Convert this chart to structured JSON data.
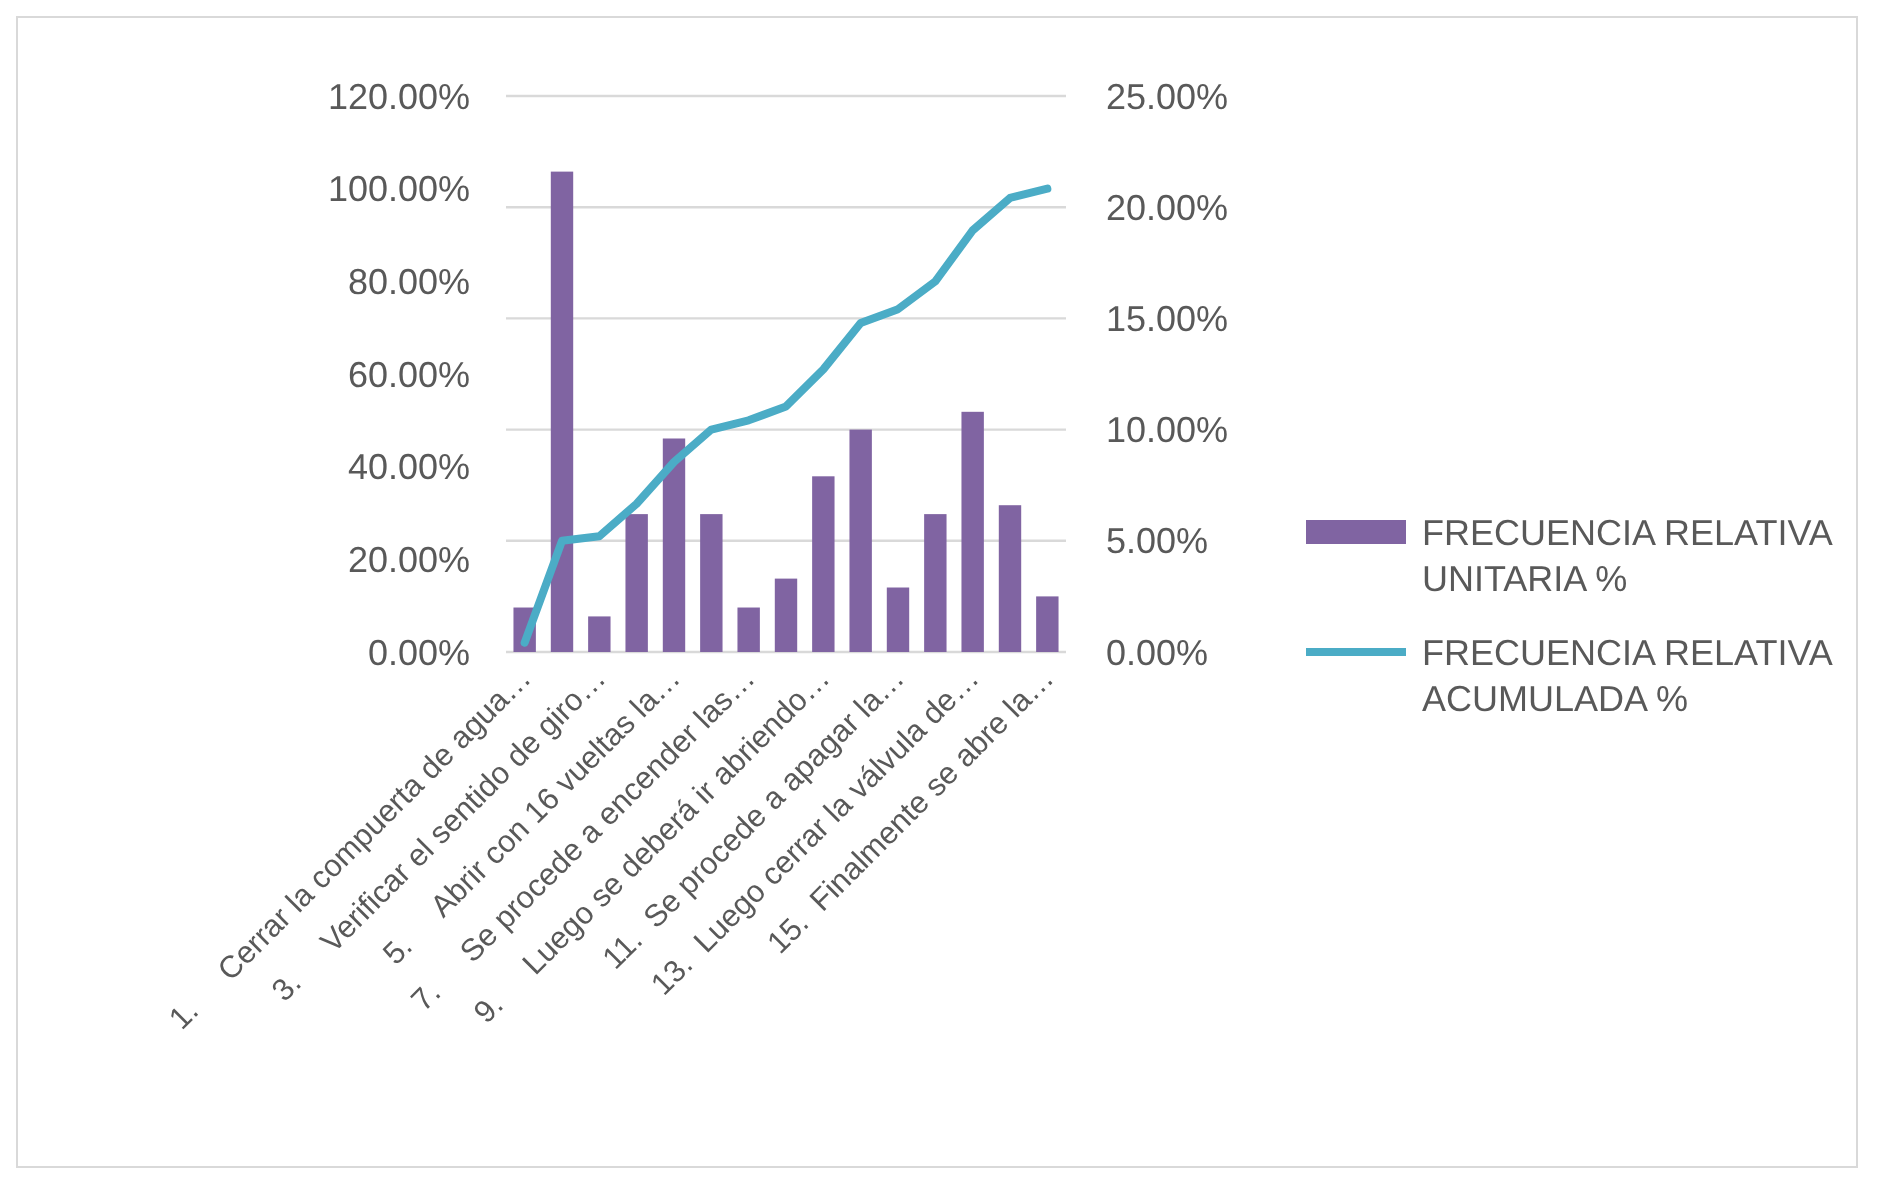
{
  "chart_data": {
    "type": "bar",
    "categories": [
      "1.     Cerrar la compuerta de agua…",
      null,
      "3.     Verificar el sentido de giro…",
      null,
      "5.     Abrir con 16 vueltas la…",
      null,
      "7.     Se procede a encender las…",
      null,
      "9.     Luego se deberá ir abriendo…",
      null,
      "11.  Se procede a apagar la…",
      null,
      "13.  Luego cerrar la válvula de…",
      null,
      "15.  Finalmente se abre la…"
    ],
    "series": [
      {
        "name": "FRECUENCIA RELATIVA UNITARIA %",
        "axis": "y2",
        "color": "#8064a2",
        "values": [
          2.0,
          21.6,
          1.6,
          6.2,
          9.6,
          6.2,
          2.0,
          3.3,
          7.9,
          10.0,
          2.9,
          6.2,
          10.8,
          6.6,
          2.5
        ]
      },
      {
        "name": "FRECUENCIA RELATIVA ACUMULADA %",
        "type": "line",
        "color": "#4bacc6",
        "values": [
          2,
          24,
          25,
          32,
          41,
          48,
          50,
          53,
          61,
          71,
          74,
          80,
          91,
          98,
          100
        ]
      }
    ],
    "ylim": [
      0,
      120
    ],
    "yticks": [
      {
        "value": 0,
        "label": "0.00%"
      },
      {
        "value": 20,
        "label": "20.00%"
      },
      {
        "value": 40,
        "label": "40.00%"
      },
      {
        "value": 60,
        "label": "60.00%"
      },
      {
        "value": 80,
        "label": "80.00%"
      },
      {
        "value": 100,
        "label": "100.00%"
      },
      {
        "value": 120,
        "label": "120.00%"
      }
    ],
    "y2lim": [
      0,
      25
    ],
    "y2ticks": [
      {
        "value": 0,
        "label": "0.00%"
      },
      {
        "value": 5,
        "label": "5.00%"
      },
      {
        "value": 10,
        "label": "10.00%"
      },
      {
        "value": 15,
        "label": "15.00%"
      },
      {
        "value": 20,
        "label": "20.00%"
      },
      {
        "value": 25,
        "label": "25.00%"
      }
    ],
    "grid": "y2",
    "legend": "right",
    "marker": "none",
    "line_style": "solid"
  }
}
